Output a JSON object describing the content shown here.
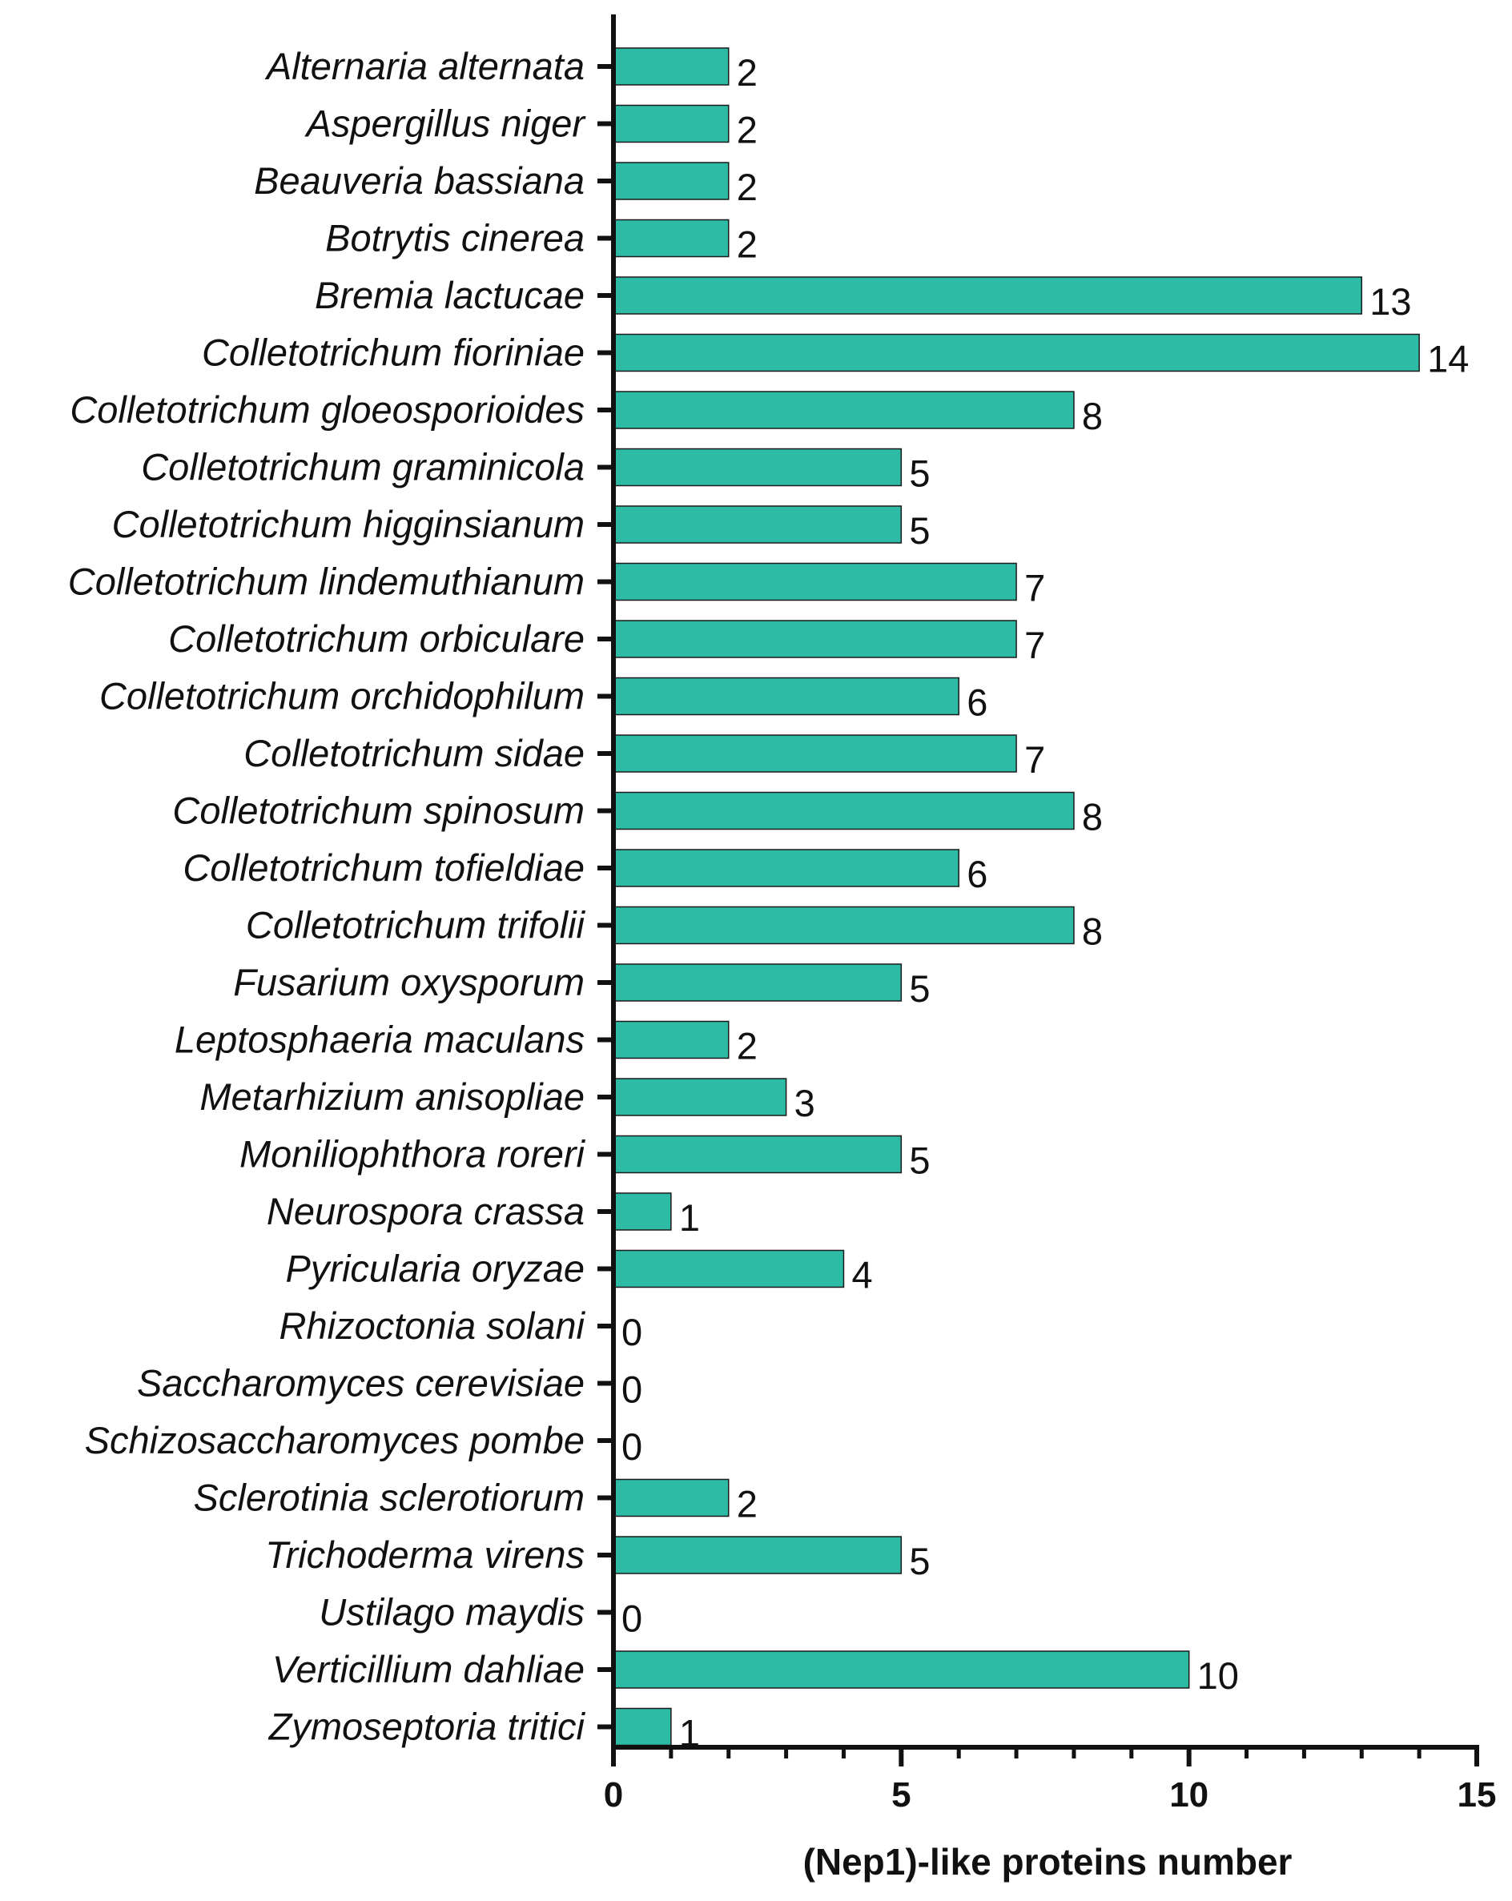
{
  "chart_data": {
    "type": "bar",
    "orientation": "horizontal",
    "title": "",
    "xlabel": "(Nep1)-like proteins number",
    "ylabel": "",
    "xlim": [
      0,
      15
    ],
    "xticks": [
      0,
      5,
      10,
      15
    ],
    "grid": false,
    "bar_color": "#2ebba6",
    "bar_edge_color": "#1a1a1a",
    "categories": [
      "Alternaria alternata",
      "Aspergillus niger",
      "Beauveria bassiana",
      "Botrytis cinerea",
      "Bremia lactucae",
      "Colletotrichum fioriniae",
      "Colletotrichum gloeosporioides",
      "Colletotrichum graminicola",
      "Colletotrichum higginsianum",
      "Colletotrichum lindemuthianum",
      "Colletotrichum orbiculare",
      "Colletotrichum orchidophilum",
      "Colletotrichum sidae",
      "Colletotrichum spinosum",
      "Colletotrichum tofieldiae",
      "Colletotrichum trifolii",
      "Fusarium oxysporum",
      "Leptosphaeria maculans",
      "Metarhizium anisopliae",
      "Moniliophthora roreri",
      "Neurospora crassa",
      "Pyricularia oryzae",
      "Rhizoctonia solani",
      "Saccharomyces cerevisiae",
      "Schizosaccharomyces pombe",
      "Sclerotinia sclerotiorum",
      "Trichoderma virens",
      "Ustilago maydis",
      "Verticillium dahliae",
      "Zymoseptoria tritici"
    ],
    "values": [
      2,
      2,
      2,
      2,
      13,
      14,
      8,
      5,
      5,
      7,
      7,
      6,
      7,
      8,
      6,
      8,
      5,
      2,
      3,
      5,
      1,
      4,
      0,
      0,
      0,
      2,
      5,
      0,
      10,
      1
    ],
    "data_labels": [
      "2",
      "2",
      "2",
      "2",
      "13",
      "14",
      "8",
      "5",
      "5",
      "7",
      "7",
      "6",
      "7",
      "8",
      "6",
      "8",
      "5",
      "2",
      "3",
      "5",
      "1",
      "4",
      "0",
      "0",
      "0",
      "2",
      "5",
      "0",
      "10",
      "1"
    ]
  }
}
